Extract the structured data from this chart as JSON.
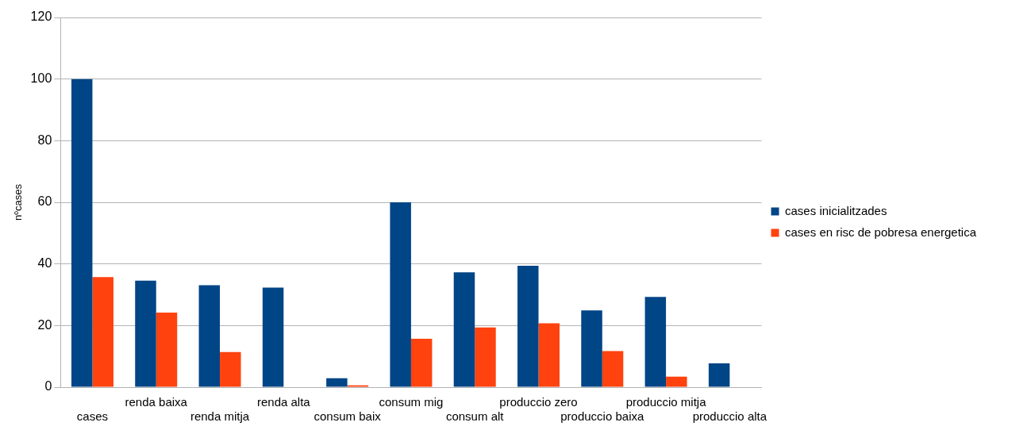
{
  "chart_data": {
    "type": "bar",
    "ylabel": "nºcases",
    "categories": [
      "cases",
      "renda baixa",
      "renda mitja",
      "renda alta",
      "consum baix",
      "consum mig",
      "consum alt",
      "produccio zero",
      "produccio baixa",
      "produccio mitja",
      "produccio alta"
    ],
    "series": [
      {
        "name": "cases inicialitzades",
        "color": "#004586",
        "values": [
          100,
          34.6,
          33.1,
          32.3,
          2.9,
          60,
          37.3,
          39.4,
          24.9,
          29.3,
          7.7
        ]
      },
      {
        "name": "cases en risc de pobresa energetica",
        "color": "#ff420e",
        "values": [
          35.7,
          24.2,
          11.4,
          0,
          0.6,
          15.7,
          19.4,
          20.7,
          11.7,
          3.4,
          0
        ]
      }
    ],
    "ylim": [
      0,
      120
    ],
    "yticks": [
      0,
      20,
      40,
      60,
      80,
      100,
      120
    ],
    "grid": "y",
    "legend": "right"
  }
}
